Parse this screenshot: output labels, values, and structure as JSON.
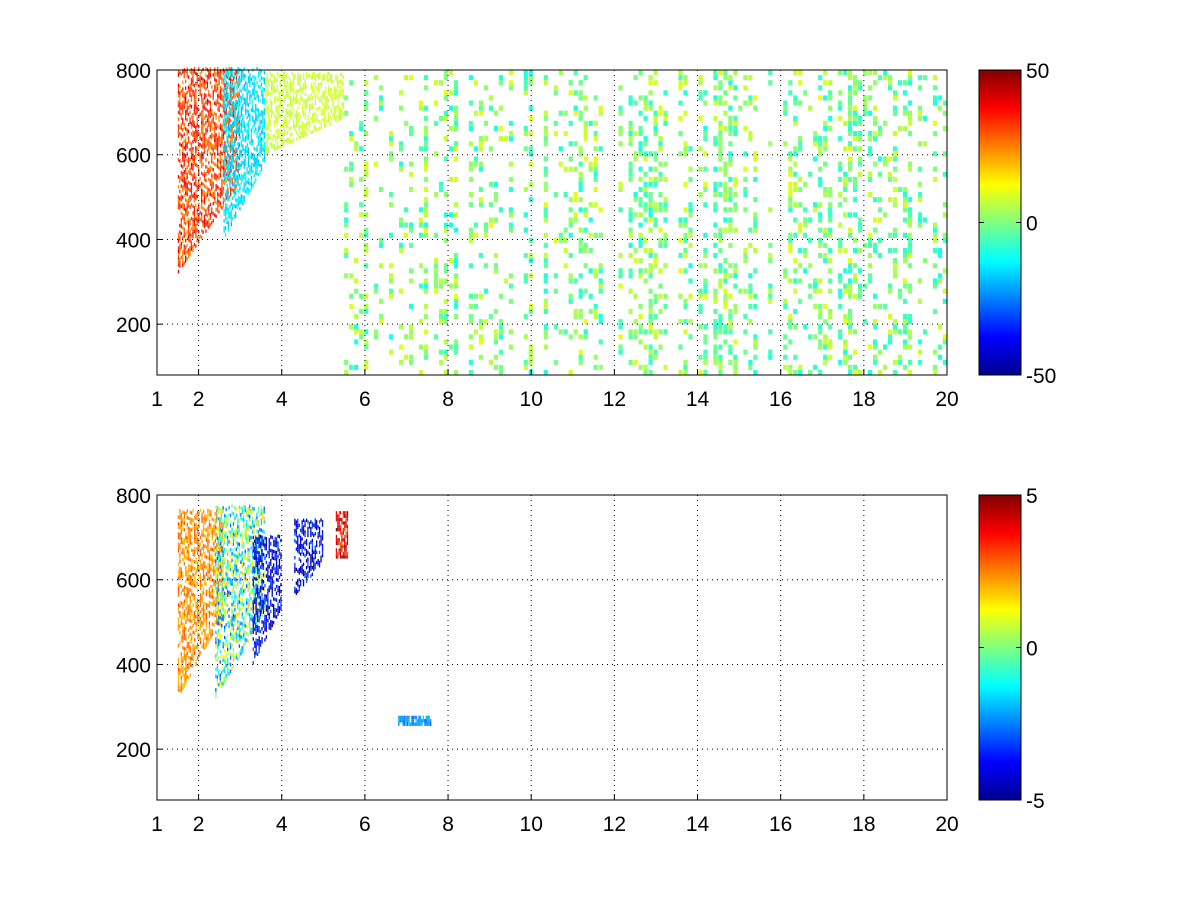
{
  "chart_data": [
    {
      "type": "heatmap",
      "title": "",
      "xlabel": "",
      "ylabel": "",
      "xlim": [
        1,
        20
      ],
      "ylim": [
        80,
        800
      ],
      "xticks": [
        1,
        2,
        4,
        6,
        8,
        10,
        12,
        14,
        16,
        18,
        20
      ],
      "yticks": [
        200,
        400,
        600,
        800
      ],
      "grid": true,
      "colorbar": {
        "colormap": "jet",
        "range": [
          -50,
          50
        ],
        "ticks": [
          50,
          0,
          -50
        ]
      },
      "features": [
        {
          "kind": "dense-positive-band",
          "x_range": [
            1.5,
            3.0
          ],
          "y_range": [
            320,
            800
          ],
          "peak_value": 40
        },
        {
          "kind": "negative-band",
          "x_range": [
            2.6,
            3.6
          ],
          "y_range": [
            400,
            800
          ],
          "peak_value": -20
        },
        {
          "kind": "positive-band",
          "x_range": [
            3.6,
            5.5
          ],
          "y_range": [
            600,
            790
          ],
          "peak_value": 10
        },
        {
          "kind": "sparse-speckle",
          "x_range": [
            5.5,
            20
          ],
          "y_range": [
            80,
            800
          ],
          "value_range": [
            -10,
            10
          ]
        }
      ]
    },
    {
      "type": "heatmap",
      "title": "",
      "xlabel": "",
      "ylabel": "",
      "xlim": [
        1,
        20
      ],
      "ylim": [
        80,
        800
      ],
      "xticks": [
        1,
        2,
        4,
        6,
        8,
        10,
        12,
        14,
        16,
        18,
        20
      ],
      "yticks": [
        200,
        400,
        600,
        800
      ],
      "grid": true,
      "colorbar": {
        "colormap": "jet",
        "range": [
          -5,
          5
        ],
        "ticks": [
          5,
          0,
          -5
        ]
      },
      "features": [
        {
          "kind": "positive-band",
          "x_range": [
            1.5,
            2.6
          ],
          "y_range": [
            320,
            760
          ],
          "peak_value": 3
        },
        {
          "kind": "mixed-band",
          "x_range": [
            2.4,
            3.6
          ],
          "y_range": [
            320,
            770
          ],
          "value_range": [
            -3,
            2
          ]
        },
        {
          "kind": "strong-negative-band",
          "x_range": [
            3.3,
            4.0
          ],
          "y_range": [
            400,
            700
          ],
          "peak_value": -5
        },
        {
          "kind": "negative-band",
          "x_range": [
            4.3,
            5.0
          ],
          "y_range": [
            560,
            740
          ],
          "peak_value": -5
        },
        {
          "kind": "positive-spot",
          "x_range": [
            5.3,
            5.6
          ],
          "y_range": [
            650,
            760
          ],
          "peak_value": 5
        },
        {
          "kind": "negative-spot",
          "x_range": [
            6.8,
            7.6
          ],
          "y_range": [
            255,
            275
          ],
          "peak_value": -3
        }
      ]
    }
  ]
}
